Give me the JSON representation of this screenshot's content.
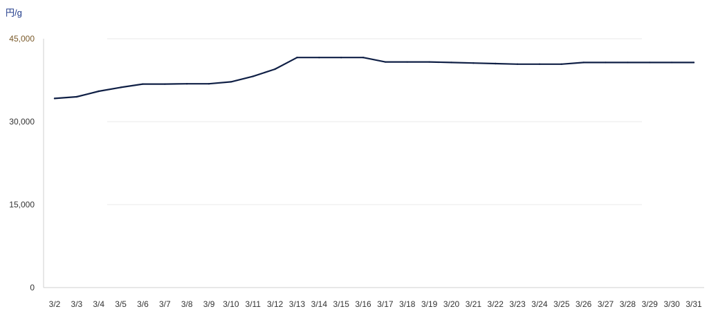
{
  "chart_data": {
    "type": "line",
    "unit_label": "円/g",
    "categories": [
      "3/2",
      "3/3",
      "3/4",
      "3/5",
      "3/6",
      "3/7",
      "3/8",
      "3/9",
      "3/10",
      "3/11",
      "3/12",
      "3/13",
      "3/14",
      "3/15",
      "3/16",
      "3/17",
      "3/18",
      "3/19",
      "3/20",
      "3/21",
      "3/22",
      "3/23",
      "3/24",
      "3/25",
      "3/26",
      "3/27",
      "3/28",
      "3/29",
      "3/30",
      "3/31"
    ],
    "series": [
      {
        "values": [
          34200,
          34500,
          35500,
          36200,
          36800,
          36800,
          36850,
          36850,
          37200,
          38200,
          39500,
          41600,
          41600,
          41600,
          41600,
          40800,
          40800,
          40800,
          40700,
          40600,
          40500,
          40400,
          40400,
          40400,
          40700,
          40700,
          40700,
          40700,
          40700,
          40700
        ]
      }
    ],
    "ylim": [
      0,
      45000
    ],
    "yticks": [
      {
        "value": 0,
        "label": "0"
      },
      {
        "value": 15000,
        "label": "15,000"
      },
      {
        "value": 30000,
        "label": "30,000"
      },
      {
        "value": 45000,
        "label": "45,000"
      }
    ],
    "colors": {
      "line": "#0f1f45",
      "grid": "#e9e9e9",
      "axis": "#cfcfcf",
      "tick_label": "#333333",
      "top_tick_label": "#7a5a2a"
    },
    "grid": true
  }
}
